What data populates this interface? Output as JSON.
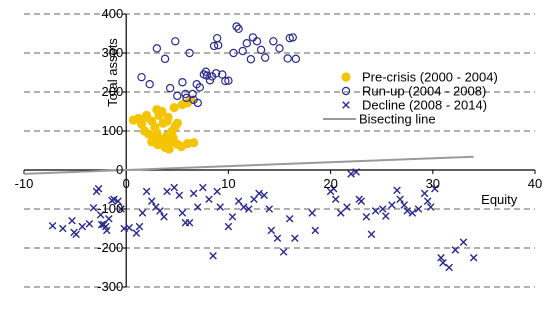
{
  "chart_data": {
    "type": "scatter",
    "title": "",
    "xlabel": "Equity",
    "ylabel": "Total assets",
    "xlim": [
      -10,
      40
    ],
    "ylim": [
      -300,
      400
    ],
    "x_ticks": [
      -10,
      0,
      10,
      20,
      30,
      40
    ],
    "y_ticks": [
      -300,
      -200,
      -100,
      0,
      100,
      200,
      300,
      400
    ],
    "x_tick_labels": [
      "-10",
      "0",
      "10",
      "20",
      "30",
      "40"
    ],
    "y_tick_labels": [
      "-300",
      "-200",
      "-100",
      "0",
      "100",
      "200",
      "300",
      "400"
    ],
    "grid": "horizontal dashed",
    "legend_position": "right",
    "colors": {
      "pre_crisis": "#f5c400",
      "run_up": "#2a2a8c",
      "decline": "#2a2a8c",
      "bisecting": "#9a9a9a",
      "grid": "#808080",
      "axis": "#000000"
    },
    "series": [
      {
        "name": "Pre-crisis (2000 - 2004)",
        "marker": "filled-circle",
        "points": [
          [
            0.7,
            128
          ],
          [
            1.5,
            118
          ],
          [
            2.0,
            135
          ],
          [
            2.5,
            125
          ],
          [
            2.8,
            110
          ],
          [
            3.2,
            140
          ],
          [
            3.6,
            120
          ],
          [
            1.8,
            100
          ],
          [
            2.2,
            92
          ],
          [
            2.7,
            85
          ],
          [
            3.0,
            95
          ],
          [
            3.3,
            80
          ],
          [
            3.6,
            75
          ],
          [
            4.0,
            88
          ],
          [
            4.3,
            70
          ],
          [
            4.6,
            82
          ],
          [
            5.0,
            66
          ],
          [
            5.4,
            60
          ],
          [
            3.8,
            58
          ],
          [
            4.2,
            54
          ],
          [
            2.5,
            72
          ],
          [
            3.1,
            65
          ],
          [
            4.5,
            100
          ],
          [
            4.8,
            112
          ],
          [
            5.0,
            120
          ],
          [
            4.1,
            135
          ],
          [
            3.5,
            150
          ],
          [
            6.0,
            68
          ],
          [
            6.6,
            70
          ],
          [
            4.7,
            160
          ],
          [
            5.5,
            168
          ],
          [
            6.0,
            172
          ],
          [
            6.3,
            180
          ],
          [
            2.0,
            140
          ],
          [
            3.0,
            155
          ],
          [
            1.2,
            132
          ],
          [
            4.0,
            125
          ]
        ]
      },
      {
        "name": "Run-up (2004 - 2008)",
        "marker": "open-circle",
        "points": [
          [
            1.5,
            238
          ],
          [
            2.3,
            220
          ],
          [
            3.0,
            312
          ],
          [
            3.8,
            285
          ],
          [
            4.3,
            210
          ],
          [
            4.8,
            330
          ],
          [
            5.0,
            190
          ],
          [
            5.5,
            225
          ],
          [
            5.8,
            195
          ],
          [
            6.2,
            300
          ],
          [
            6.6,
            180
          ],
          [
            7.0,
            172
          ],
          [
            7.2,
            212
          ],
          [
            7.8,
            252
          ],
          [
            7.9,
            242
          ],
          [
            8.2,
            230
          ],
          [
            8.6,
            318
          ],
          [
            8.9,
            338
          ],
          [
            9.0,
            320
          ],
          [
            9.4,
            245
          ],
          [
            9.7,
            228
          ],
          [
            10.0,
            229
          ],
          [
            10.5,
            300
          ],
          [
            10.8,
            368
          ],
          [
            11.0,
            362
          ],
          [
            11.4,
            305
          ],
          [
            11.8,
            325
          ],
          [
            12.2,
            284
          ],
          [
            12.4,
            340
          ],
          [
            12.8,
            330
          ],
          [
            13.2,
            308
          ],
          [
            13.6,
            288
          ],
          [
            14.4,
            330
          ],
          [
            15.0,
            312
          ],
          [
            15.8,
            286
          ],
          [
            16.0,
            338
          ],
          [
            16.3,
            340
          ],
          [
            16.6,
            285
          ],
          [
            5.9,
            185
          ],
          [
            6.5,
            195
          ],
          [
            8.8,
            248
          ],
          [
            8.4,
            240
          ],
          [
            6.9,
            220
          ],
          [
            7.6,
            245
          ]
        ]
      },
      {
        "name": "Decline (2008 - 2014)",
        "marker": "x",
        "points": [
          [
            -7.2,
            -143
          ],
          [
            -6.2,
            -150
          ],
          [
            -5.3,
            -130
          ],
          [
            -5.1,
            -160
          ],
          [
            -4.9,
            -165
          ],
          [
            -4.3,
            -145
          ],
          [
            -3.6,
            -138
          ],
          [
            -3.2,
            -97
          ],
          [
            -2.9,
            -55
          ],
          [
            -2.7,
            -48
          ],
          [
            -2.5,
            -115
          ],
          [
            -2.4,
            -140
          ],
          [
            -2.2,
            -140
          ],
          [
            -2.0,
            -145
          ],
          [
            -1.9,
            -155
          ],
          [
            -1.7,
            -125
          ],
          [
            -1.4,
            -78
          ],
          [
            -1.2,
            -75
          ],
          [
            -0.8,
            -80
          ],
          [
            -0.5,
            -100
          ],
          [
            -0.2,
            -150
          ],
          [
            0.3,
            -148
          ],
          [
            1.0,
            -162
          ],
          [
            1.3,
            -145
          ],
          [
            1.6,
            -110
          ],
          [
            2.0,
            -55
          ],
          [
            2.5,
            -80
          ],
          [
            2.9,
            -95
          ],
          [
            3.3,
            -105
          ],
          [
            3.7,
            -120
          ],
          [
            4.0,
            -55
          ],
          [
            4.7,
            -45
          ],
          [
            5.2,
            -65
          ],
          [
            5.5,
            -110
          ],
          [
            5.8,
            -135
          ],
          [
            6.2,
            -135
          ],
          [
            6.6,
            -60
          ],
          [
            7.0,
            -95
          ],
          [
            7.5,
            -45
          ],
          [
            8.1,
            -75
          ],
          [
            8.5,
            -220
          ],
          [
            8.9,
            -55
          ],
          [
            9.2,
            -95
          ],
          [
            10.0,
            -145
          ],
          [
            10.4,
            -120
          ],
          [
            11.0,
            -80
          ],
          [
            11.5,
            -95
          ],
          [
            12.0,
            -100
          ],
          [
            12.5,
            -75
          ],
          [
            13.0,
            -60
          ],
          [
            13.5,
            -65
          ],
          [
            14.0,
            -100
          ],
          [
            14.2,
            -155
          ],
          [
            14.8,
            -175
          ],
          [
            15.4,
            -210
          ],
          [
            16.0,
            -125
          ],
          [
            16.5,
            -175
          ],
          [
            18.2,
            -110
          ],
          [
            18.5,
            -155
          ],
          [
            20.0,
            -55
          ],
          [
            20.3,
            -48
          ],
          [
            21.0,
            -110
          ],
          [
            21.6,
            -95
          ],
          [
            22.0,
            -10
          ],
          [
            22.5,
            -5
          ],
          [
            22.8,
            -75
          ],
          [
            23.0,
            -80
          ],
          [
            23.5,
            -120
          ],
          [
            24.4,
            -105
          ],
          [
            25.1,
            -100
          ],
          [
            25.4,
            -118
          ],
          [
            26.0,
            -90
          ],
          [
            26.5,
            -52
          ],
          [
            26.8,
            -75
          ],
          [
            27.2,
            -90
          ],
          [
            27.5,
            -105
          ],
          [
            28.0,
            -110
          ],
          [
            28.6,
            -100
          ],
          [
            29.2,
            -60
          ],
          [
            29.5,
            -80
          ],
          [
            29.8,
            -95
          ],
          [
            30.2,
            -48
          ],
          [
            30.8,
            -225
          ],
          [
            31.0,
            -238
          ],
          [
            31.6,
            -250
          ],
          [
            32.2,
            -205
          ],
          [
            33.0,
            -185
          ],
          [
            34.0,
            -225
          ],
          [
            20.5,
            -75
          ],
          [
            24.0,
            -165
          ]
        ]
      },
      {
        "name": "Bisecting line",
        "marker": "line",
        "points": [
          [
            -10,
            -10
          ],
          [
            34,
            34
          ]
        ]
      }
    ]
  }
}
